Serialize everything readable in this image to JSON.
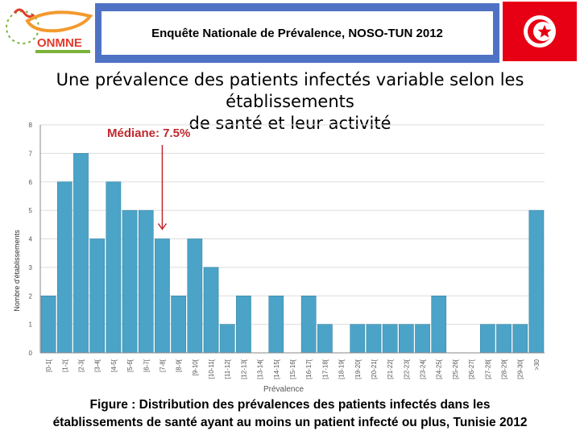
{
  "header": {
    "logo_text": "ONMNE",
    "banner_title": "Enquête Nationale de Prévalence, NOSO-TUN 2012"
  },
  "slide": {
    "title_line1": "Une prévalence des patients infectés variable selon les établissements",
    "title_line2": "de santé et leur activité"
  },
  "annotation": {
    "median_label": "Médiane: 7.5%",
    "median_value": 7.5
  },
  "chart_data": {
    "type": "bar",
    "categories": [
      "[0-1[",
      "[1-2[",
      "[2-3[",
      "[3-4[",
      "[4-5[",
      "[5-6[",
      "[6-7[",
      "[7-8[",
      "[8-9[",
      "[9-10[",
      "[10-11[",
      "[11-12[",
      "[12-13[",
      "[13-14[",
      "[14-15[",
      "[15-16[",
      "[16-17[",
      "[17-18[",
      "[18-19[",
      "[19-20[",
      "[20-21[",
      "[21-22[",
      "[22-23[",
      "[23-24[",
      "[24-25[",
      "[25-26[",
      "[26-27[",
      "[27-28[",
      "[28-29[",
      "[29-30[",
      ">30"
    ],
    "values": [
      2,
      6,
      7,
      4,
      6,
      5,
      5,
      4,
      2,
      4,
      3,
      1,
      2,
      0,
      2,
      0,
      2,
      1,
      0,
      1,
      1,
      1,
      1,
      1,
      2,
      0,
      0,
      1,
      1,
      1,
      5
    ],
    "xlabel": "Prévalence",
    "ylabel": "Nombre d'établissements",
    "ylim": [
      0,
      8
    ],
    "yticks": [
      0,
      1,
      2,
      3,
      4,
      5,
      6,
      7,
      8
    ],
    "bar_color": "#4ba3c7",
    "grid": "horizontal"
  },
  "caption": {
    "line1": "Figure : Distribution des prévalences des patients infectés dans les",
    "line2": "établissements de santé ayant au moins un patient infecté ou plus, Tunisie 2012"
  }
}
